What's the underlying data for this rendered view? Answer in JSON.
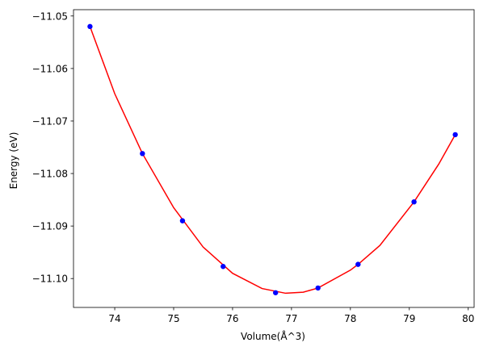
{
  "chart_data": {
    "type": "scatter",
    "xlabel": "Volume(Å^3)",
    "ylabel": "Energy (eV)",
    "xlim": [
      73.3,
      80.1
    ],
    "ylim": [
      -11.1055,
      -11.0488
    ],
    "grid": false,
    "x_ticks": [
      74,
      75,
      76,
      77,
      78,
      79,
      80
    ],
    "y_ticks": [
      -11.1,
      -11.09,
      -11.08,
      -11.07,
      -11.06,
      -11.05
    ],
    "x_tick_labels": [
      "74",
      "75",
      "76",
      "77",
      "78",
      "79",
      "80"
    ],
    "y_tick_labels": [
      "−11.10",
      "−11.09",
      "−11.08",
      "−11.07",
      "−11.06",
      "−11.05"
    ],
    "series": [
      {
        "kind": "points",
        "color": "#0000ff",
        "x": [
          73.58,
          74.47,
          75.15,
          75.84,
          76.73,
          77.45,
          78.13,
          79.08,
          79.78
        ],
        "y": [
          -11.052,
          -11.0762,
          -11.089,
          -11.0977,
          -11.1027,
          -11.1018,
          -11.0973,
          -11.0854,
          -11.0726
        ]
      },
      {
        "kind": "fit-curve",
        "color": "#ff0000",
        "x": [
          73.58,
          74.0,
          74.47,
          75.0,
          75.5,
          76.0,
          76.5,
          76.9,
          77.2,
          77.45,
          78.0,
          78.13,
          78.5,
          79.08,
          79.5,
          79.78
        ],
        "y": [
          -11.052,
          -11.0648,
          -11.0762,
          -11.0865,
          -11.094,
          -11.099,
          -11.1019,
          -11.1028,
          -11.1026,
          -11.1018,
          -11.0984,
          -11.0973,
          -11.0937,
          -11.0854,
          -11.0782,
          -11.0726
        ]
      }
    ]
  }
}
